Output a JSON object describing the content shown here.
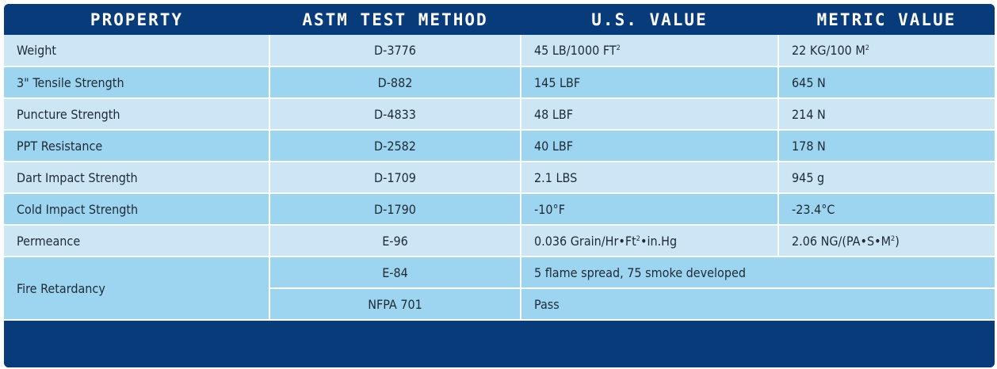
{
  "headers": [
    "PROPERTY",
    "ASTM TEST METHOD",
    "U.S. VALUE",
    "METRIC VALUE"
  ],
  "rows": [
    {
      "property": "Weight",
      "method": "D-3776",
      "us_pre": "45 LB/1000 FT",
      "us_sup": "2",
      "us_post": "",
      "metric_pre": "22 KG/100 M",
      "metric_sup": "2",
      "metric_post": ""
    },
    {
      "property": "3\" Tensile Strength",
      "method": "D-882",
      "us_pre": "145 LBF",
      "us_sup": "",
      "us_post": "",
      "metric_pre": "645 N",
      "metric_sup": "",
      "metric_post": ""
    },
    {
      "property": "Puncture Strength",
      "method": "D-4833",
      "us_pre": "48 LBF",
      "us_sup": "",
      "us_post": "",
      "metric_pre": "214 N",
      "metric_sup": "",
      "metric_post": ""
    },
    {
      "property": "PPT Resistance",
      "method": "D-2582",
      "us_pre": "40 LBF",
      "us_sup": "",
      "us_post": "",
      "metric_pre": "178 N",
      "metric_sup": "",
      "metric_post": ""
    },
    {
      "property": "Dart Impact Strength",
      "method": "D-1709",
      "us_pre": "2.1 LBS",
      "us_sup": "",
      "us_post": "",
      "metric_pre": "945 g",
      "metric_sup": "",
      "metric_post": ""
    },
    {
      "property": "Cold Impact Strength",
      "method": "D-1790",
      "us_pre": "-10°F",
      "us_sup": "",
      "us_post": "",
      "metric_pre": "-23.4°C",
      "metric_sup": "",
      "metric_post": ""
    },
    {
      "property": "Permeance",
      "method": "E-96",
      "us_pre": "0.036 Grain/Hr•Ft",
      "us_sup": "2",
      "us_post": "•in.Hg",
      "metric_pre": "2.06 NG/(PA•S•M",
      "metric_sup": "2",
      "metric_post": ")"
    }
  ],
  "fire": {
    "property": "Fire Retardancy",
    "tests": [
      {
        "method": "E-84",
        "result": "5 flame spread, 75 smoke developed"
      },
      {
        "method": "NFPA 701",
        "result": "Pass"
      }
    ]
  },
  "colors": {
    "header": "#073b7a",
    "row_light": "#cde6f6",
    "row_dark": "#9dd5f1"
  }
}
